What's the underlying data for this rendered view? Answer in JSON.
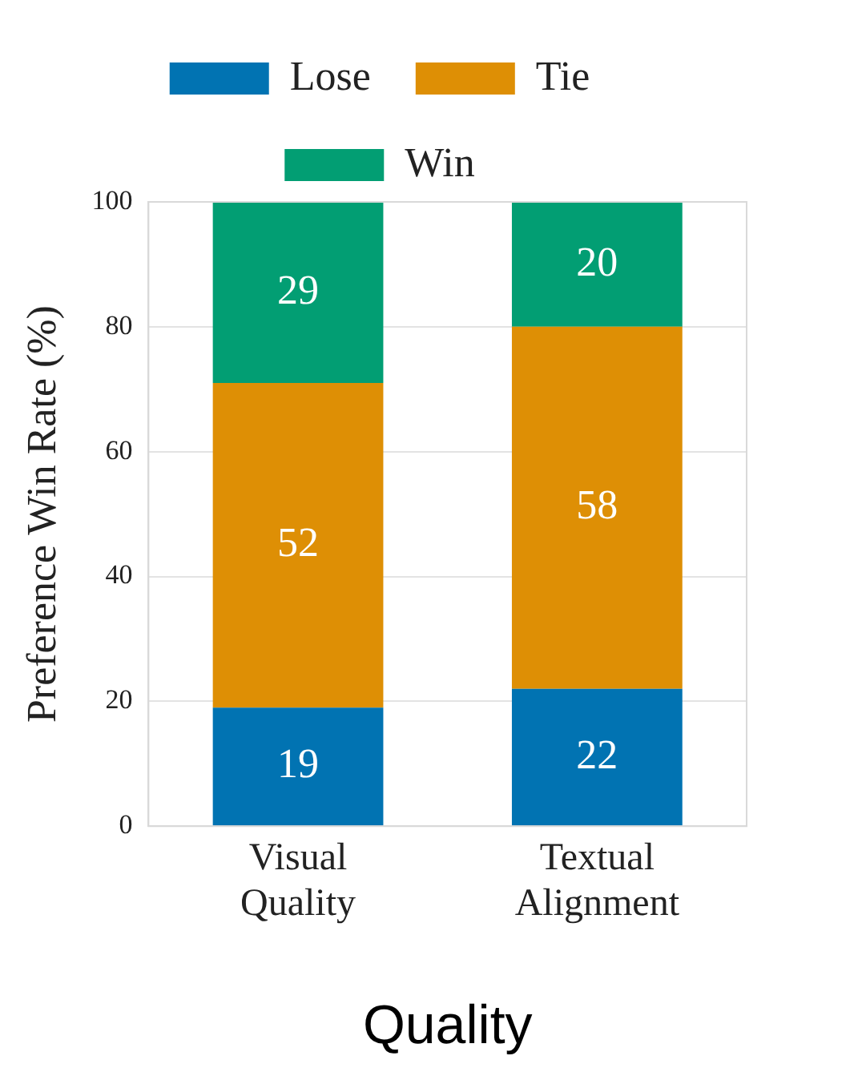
{
  "chart_data": {
    "type": "bar",
    "stacked": true,
    "xlabel": "Quality",
    "ylabel": "Preference Win Rate (%)",
    "categories": [
      "Visual Quality",
      "Textual Alignment"
    ],
    "series": [
      {
        "name": "Lose",
        "color": "#0173b2",
        "values": [
          19,
          22
        ]
      },
      {
        "name": "Tie",
        "color": "#de8f05",
        "values": [
          52,
          58
        ]
      },
      {
        "name": "Win",
        "color": "#029e73",
        "values": [
          29,
          20
        ]
      }
    ],
    "ylim": [
      0,
      100
    ],
    "yticks": [
      0,
      20,
      40,
      60,
      80,
      100
    ],
    "grid": "y",
    "legend": "top",
    "data_labels": true
  }
}
